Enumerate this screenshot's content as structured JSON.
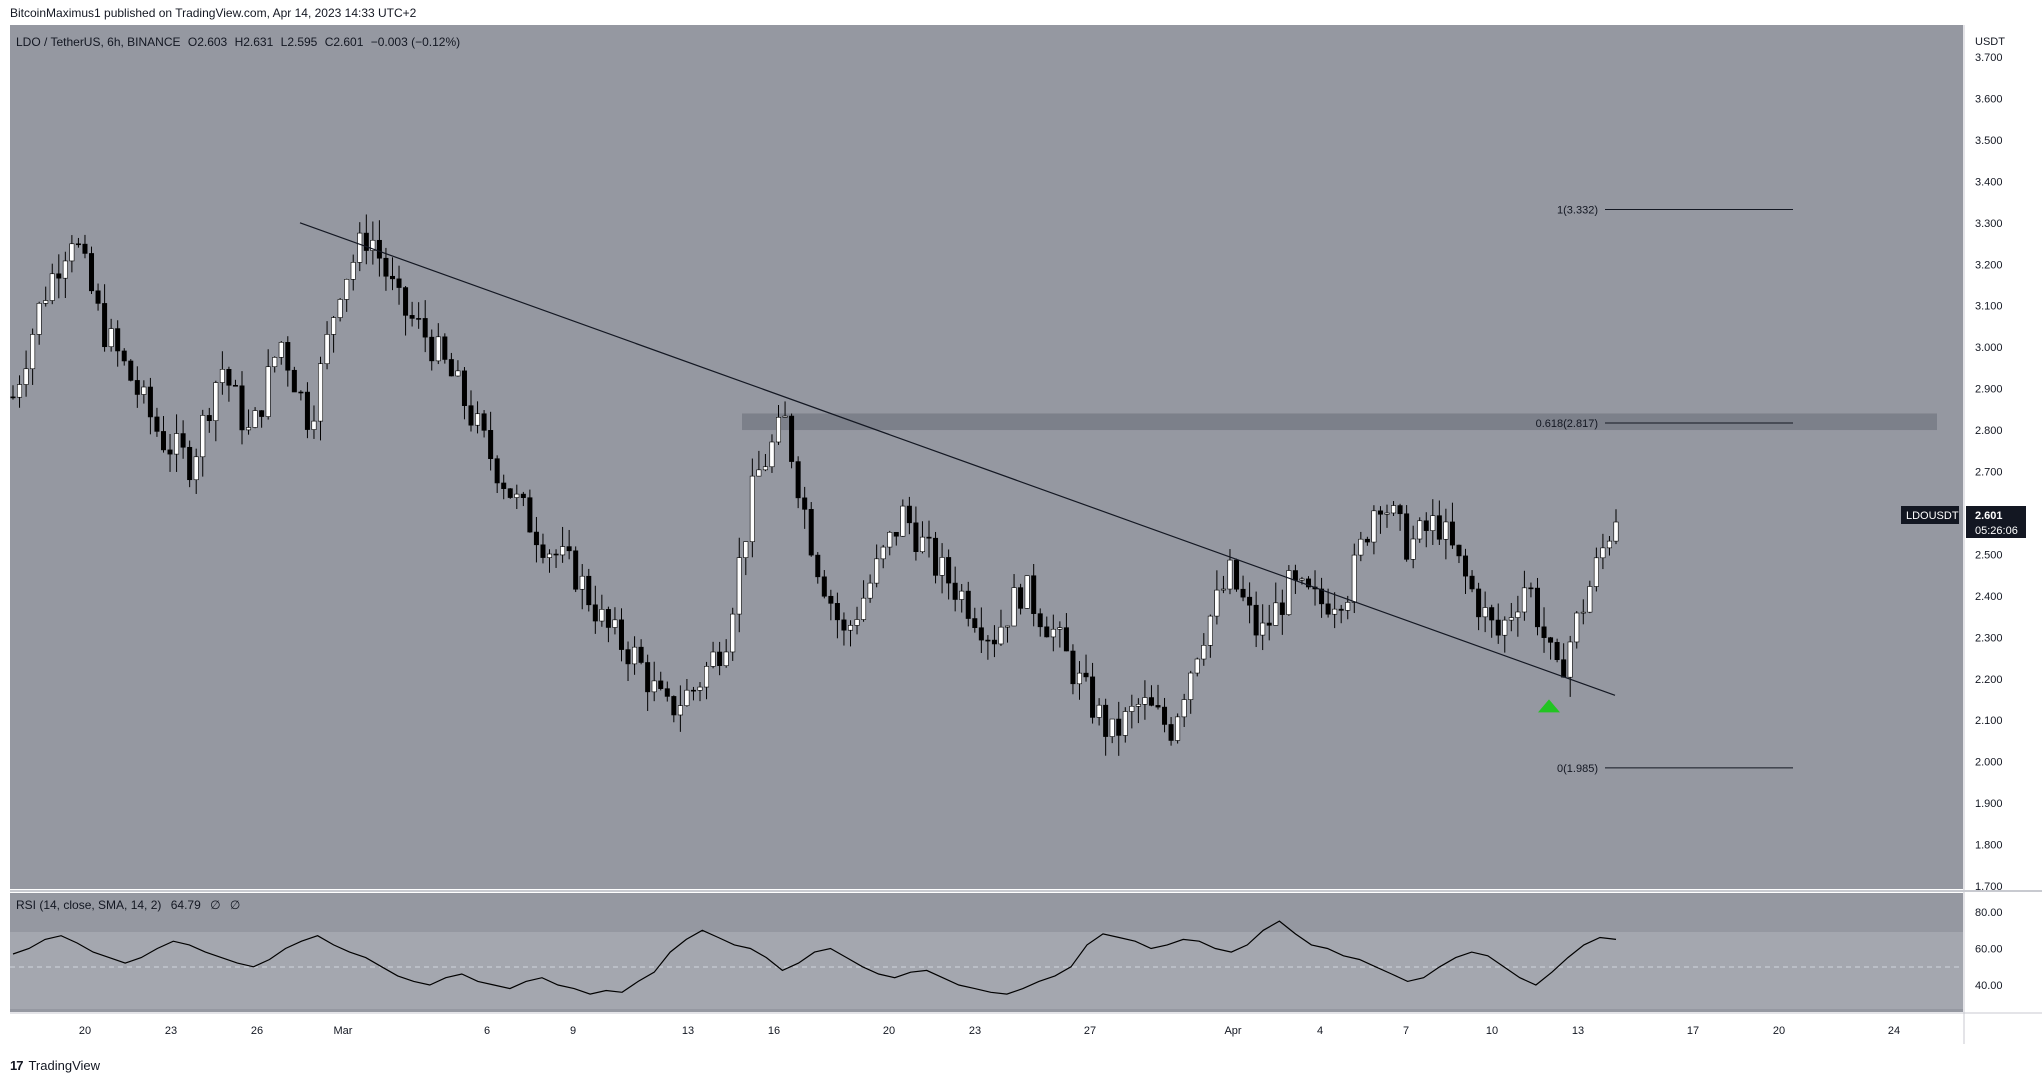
{
  "header": {
    "published_line": "BitcoinMaximus1 published on TradingView.com, Apr 14, 2023 14:33 UTC+2"
  },
  "footer": {
    "brand": "TradingView"
  },
  "legend": {
    "symbol": "LDO / TetherUS, 6h, BINANCE",
    "o_label": "O",
    "o_value": "2.603",
    "h_label": "H",
    "h_value": "2.631",
    "l_label": "L",
    "l_value": "2.595",
    "c_label": "C",
    "c_value": "2.601",
    "change": "−0.003 (−0.12%)"
  },
  "price_scale": {
    "currency": "USDT",
    "ticks": [
      "3.700",
      "3.600",
      "3.500",
      "3.400",
      "3.300",
      "3.200",
      "3.100",
      "3.000",
      "2.900",
      "2.800",
      "2.700",
      "2.600",
      "2.500",
      "2.400",
      "2.300",
      "2.200",
      "2.100",
      "2.000",
      "1.900",
      "1.800",
      "1.700"
    ]
  },
  "time_scale": {
    "ticks": [
      "20",
      "23",
      "26",
      "Mar",
      "6",
      "9",
      "13",
      "16",
      "20",
      "23",
      "27",
      "Apr",
      "4",
      "7",
      "10",
      "13",
      "17",
      "20",
      "24"
    ]
  },
  "price_tag": {
    "symbol": "LDOUSDT",
    "price": "2.601",
    "countdown": "05:26:06"
  },
  "rsi": {
    "label": "RSI (14, close, SMA, 14, 2)",
    "value": "64.79",
    "extra1": "∅",
    "extra2": "∅",
    "ticks": [
      "80.00",
      "60.00",
      "40.00"
    ]
  },
  "colors": {
    "pane_bg": "#9598a1",
    "up_candle": "#ffffff",
    "down_candle": "#000000",
    "rsi_band": "#a4a7af",
    "resistance_zone": "#787b86",
    "arrow": "#22c422"
  },
  "chart_data": [
    {
      "type": "candlestick",
      "symbol": "LDO / TetherUS",
      "interval": "6h",
      "exchange": "BINANCE",
      "ylim": [
        1.7,
        3.75
      ],
      "x_ticks": [
        "20",
        "23",
        "26",
        "Mar",
        "6",
        "9",
        "13",
        "16",
        "20",
        "23",
        "27",
        "Apr",
        "4",
        "7",
        "10",
        "13",
        "17",
        "20",
        "24"
      ],
      "close_path": [
        2.88,
        3.12,
        3.28,
        3.05,
        2.92,
        2.78,
        2.72,
        2.96,
        2.78,
        3.02,
        2.82,
        3.15,
        3.28,
        3.1,
        3.02,
        2.9,
        2.75,
        2.62,
        2.52,
        2.45,
        2.32,
        2.25,
        2.12,
        2.18,
        2.3,
        2.68,
        2.82,
        2.5,
        2.3,
        2.45,
        2.6,
        2.48,
        2.4,
        2.3,
        2.42,
        2.32,
        2.18,
        2.06,
        2.14,
        2.08,
        2.3,
        2.45,
        2.3,
        2.42,
        2.38,
        2.42,
        2.65,
        2.52,
        2.58,
        2.43,
        2.3,
        2.44,
        2.2,
        2.4,
        2.6
      ],
      "trendline": {
        "from": 3.3,
        "to": 2.16
      },
      "horizontal_zone": [
        2.8,
        2.84
      ],
      "fibonacci": [
        {
          "label": "1(3.332)",
          "level": 1,
          "price": 3.332
        },
        {
          "label": "0.618(2.817)",
          "level": 0.618,
          "price": 2.817
        },
        {
          "label": "0(1.985)",
          "level": 0,
          "price": 1.985
        }
      ],
      "marker": {
        "type": "arrow-up",
        "price": 2.16
      }
    },
    {
      "type": "line",
      "name": "RSI (14, close, SMA, 14, 2)",
      "ylim": [
        20,
        90
      ],
      "y_ticks": [
        80,
        60,
        40
      ],
      "band": [
        30,
        70
      ],
      "midline": 50,
      "last_value": 64.79,
      "values": [
        57,
        60,
        65,
        67,
        63,
        58,
        55,
        52,
        55,
        60,
        64,
        62,
        58,
        55,
        52,
        50,
        54,
        60,
        64,
        67,
        62,
        58,
        55,
        50,
        45,
        42,
        40,
        44,
        46,
        42,
        40,
        38,
        42,
        44,
        40,
        38,
        35,
        37,
        36,
        42,
        47,
        58,
        65,
        70,
        66,
        62,
        60,
        55,
        48,
        52,
        58,
        60,
        55,
        50,
        46,
        44,
        47,
        48,
        44,
        40,
        38,
        36,
        35,
        38,
        42,
        45,
        50,
        62,
        68,
        66,
        64,
        60,
        62,
        65,
        64,
        60,
        58,
        62,
        70,
        75,
        68,
        62,
        60,
        56,
        54,
        50,
        46,
        42,
        44,
        50,
        55,
        58,
        56,
        50,
        44,
        40,
        47,
        55,
        62,
        66,
        65
      ]
    }
  ]
}
